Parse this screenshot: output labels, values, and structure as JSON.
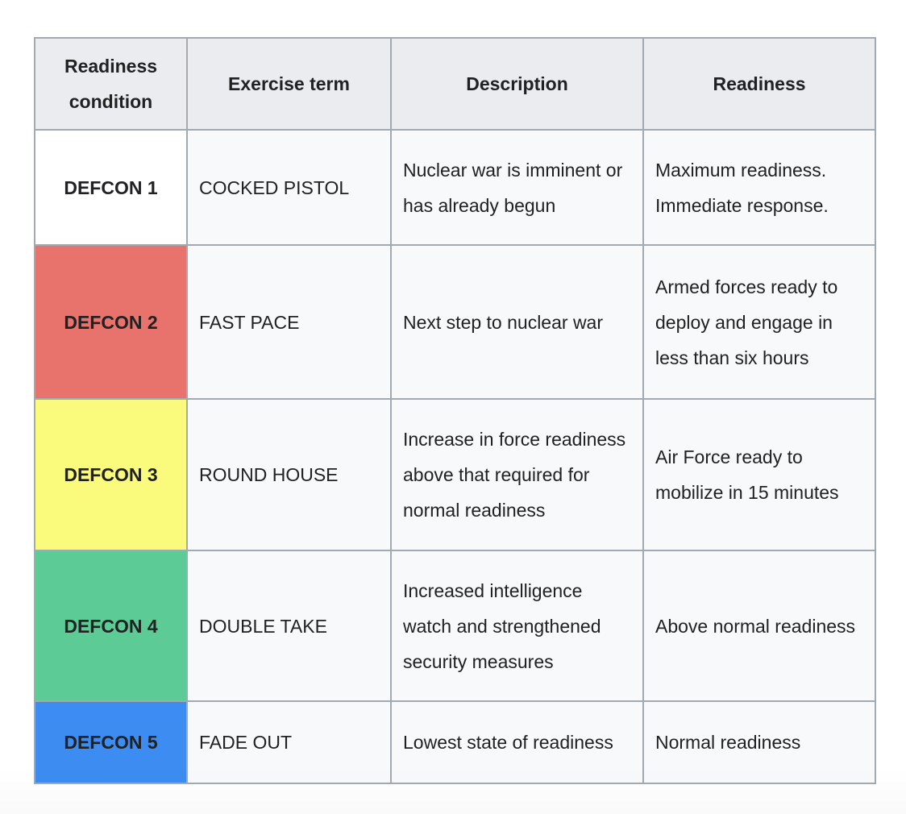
{
  "colors": {
    "page_background": "#ffffff",
    "header_background": "#eaecf0",
    "cell_background": "#f8f9fa",
    "border": "#a2a9b1",
    "text": "#202122",
    "defcon1": "#ffffff",
    "defcon2": "#e8736c",
    "defcon3": "#fafa7d",
    "defcon4": "#5ccb96",
    "defcon5": "#3c8cf1"
  },
  "table": {
    "columns": [
      {
        "label": "Readiness condition"
      },
      {
        "label": "Exercise term"
      },
      {
        "label": "Description"
      },
      {
        "label": "Readiness"
      }
    ],
    "rows": [
      {
        "condition": "DEFCON 1",
        "condition_color": "#ffffff",
        "exercise_term": "COCKED PISTOL",
        "description": "Nuclear war is imminent or has already begun",
        "readiness": "Maximum readiness. Immediate response."
      },
      {
        "condition": "DEFCON 2",
        "condition_color": "#e8736c",
        "exercise_term": "FAST PACE",
        "description": "Next step to nuclear war",
        "readiness": "Armed forces ready to deploy and engage in less than six hours"
      },
      {
        "condition": "DEFCON 3",
        "condition_color": "#fafa7d",
        "exercise_term": "ROUND HOUSE",
        "description": "Increase in force readiness above that required for normal readiness",
        "readiness": "Air Force ready to mobilize in 15 minutes"
      },
      {
        "condition": "DEFCON 4",
        "condition_color": "#5ccb96",
        "exercise_term": "DOUBLE TAKE",
        "description": "Increased intelligence watch and strengthened security measures",
        "readiness": "Above normal readiness"
      },
      {
        "condition": "DEFCON 5",
        "condition_color": "#3c8cf1",
        "exercise_term": "FADE OUT",
        "description": "Lowest state of readiness",
        "readiness": "Normal readiness"
      }
    ]
  }
}
